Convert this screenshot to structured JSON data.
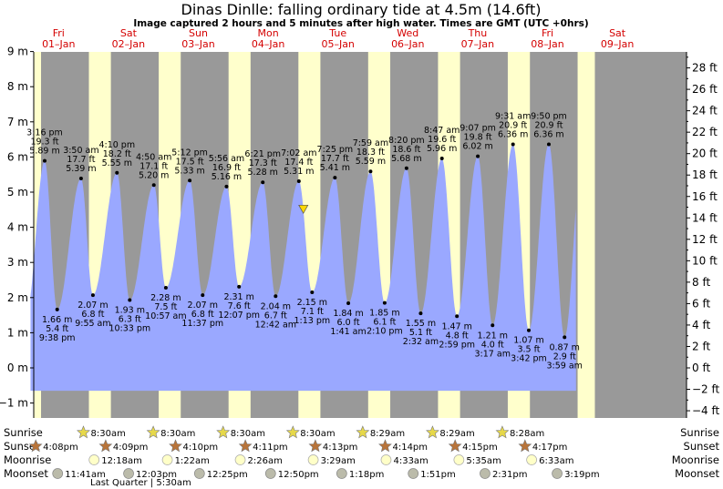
{
  "title": "Dinas Dinlle: falling  ordinary tide at 4.5m (14.6ft)",
  "subtitle": "Image captured 2 hours and 5 minutes after high water. Times are GMT (UTC +0hrs)",
  "colors": {
    "day": "#ffffcc",
    "night": "#999999",
    "water": "#9aa8ff",
    "daylabel": "#d40000",
    "sunrise_star": "#e6d84a",
    "sunset_star": "#b8743a",
    "moonrise": "#ffffc8",
    "moonset": "#bbbbaa",
    "marker": "#ffd800"
  },
  "days": [
    {
      "dow": "Fri",
      "date": "01–Jan"
    },
    {
      "dow": "Sat",
      "date": "02–Jan"
    },
    {
      "dow": "Sun",
      "date": "03–Jan"
    },
    {
      "dow": "Mon",
      "date": "04–Jan"
    },
    {
      "dow": "Tue",
      "date": "05–Jan"
    },
    {
      "dow": "Wed",
      "date": "06–Jan"
    },
    {
      "dow": "Thu",
      "date": "07–Jan"
    },
    {
      "dow": "Fri",
      "date": "08–Jan"
    },
    {
      "dow": "Sat",
      "date": "09–Jan"
    }
  ],
  "chart_data": {
    "type": "area",
    "title": "Dinas Dinlle: falling  ordinary tide at 4.5m (14.6ft)",
    "y_left": {
      "unit": "m",
      "range": [
        -1.5,
        9
      ],
      "ticks": [
        "9 m",
        "8 m",
        "7 m",
        "6 m",
        "5 m",
        "4 m",
        "3 m",
        "2 m",
        "1 m",
        "0 m",
        "−1 m"
      ]
    },
    "y_right": {
      "unit": "ft",
      "range": [
        -4.9,
        29.5
      ],
      "ticks": [
        "28 ft",
        "26 ft",
        "24 ft",
        "22 ft",
        "20 ft",
        "18 ft",
        "16 ft",
        "14 ft",
        "12 ft",
        "10 ft",
        "8 ft",
        "6 ft",
        "4 ft",
        "2 ft",
        "0 ft",
        "−2 ft",
        "−4 ft"
      ]
    },
    "x_range_days": [
      0,
      8
    ],
    "current": {
      "height_m": 4.5,
      "height_ft": 14.6,
      "state": "falling"
    },
    "high_tides": [
      {
        "t": 0.222,
        "m": 5.89,
        "time": "3:16 pm",
        "ft": "19.3 ft",
        "mtxt": "5.89 m"
      },
      {
        "t": 0.743,
        "m": 5.39,
        "time": "3:50 am",
        "ft": "17.7 ft",
        "mtxt": "5.39 m"
      },
      {
        "t": 1.257,
        "m": 5.55,
        "time": "4:10 pm",
        "ft": "18.2 ft",
        "mtxt": "5.55 m"
      },
      {
        "t": 1.785,
        "m": 5.2,
        "time": "4:50 am",
        "ft": "17.1 ft",
        "mtxt": "5.20 m"
      },
      {
        "t": 2.299,
        "m": 5.33,
        "time": "5:12 pm",
        "ft": "17.5 ft",
        "mtxt": "5.33 m"
      },
      {
        "t": 2.826,
        "m": 5.16,
        "time": "5:56 am",
        "ft": "16.9 ft",
        "mtxt": "5.16 m"
      },
      {
        "t": 3.345,
        "m": 5.28,
        "time": "6:21 pm",
        "ft": "17.3 ft",
        "mtxt": "5.28 m"
      },
      {
        "t": 3.862,
        "m": 5.31,
        "time": "7:02 am",
        "ft": "17.4 ft",
        "mtxt": "5.31 m"
      },
      {
        "t": 4.378,
        "m": 5.41,
        "time": "7:25 pm",
        "ft": "17.7 ft",
        "mtxt": "5.41 m"
      },
      {
        "t": 4.888,
        "m": 5.59,
        "time": "7:59 am",
        "ft": "18.3 ft",
        "mtxt": "5.59 m"
      },
      {
        "t": 5.403,
        "m": 5.68,
        "time": "8:20 pm",
        "ft": "18.6 ft",
        "mtxt": "5.68 m"
      },
      {
        "t": 5.91,
        "m": 5.96,
        "time": "8:47 am",
        "ft": "19.6 ft",
        "mtxt": "5.96 m"
      },
      {
        "t": 6.424,
        "m": 6.02,
        "time": "9:07 pm",
        "ft": "19.8 ft",
        "mtxt": "6.02 m"
      },
      {
        "t": 6.928,
        "m": 6.36,
        "time": "9:31 am",
        "ft": "20.9 ft",
        "mtxt": "6.36 m"
      },
      {
        "t": 7.441,
        "m": 6.36,
        "time": "9:50 pm",
        "ft": "20.9 ft",
        "mtxt": "6.36 m"
      }
    ],
    "low_tides": [
      {
        "t": 0.401,
        "m": 1.66,
        "time": "9:38 pm",
        "ft": "5.4 ft",
        "mtxt": "1.66 m"
      },
      {
        "t": 0.913,
        "m": 2.07,
        "time": "9:55 am",
        "ft": "6.8 ft",
        "mtxt": "2.07 m"
      },
      {
        "t": 1.44,
        "m": 1.93,
        "time": "10:33 pm",
        "ft": "6.3 ft",
        "mtxt": "1.93 m"
      },
      {
        "t": 1.957,
        "m": 2.28,
        "time": "10:57 am",
        "ft": "7.5 ft",
        "mtxt": "2.28 m"
      },
      {
        "t": 2.484,
        "m": 2.07,
        "time": "11:37 pm",
        "ft": "6.8 ft",
        "mtxt": "2.07 m"
      },
      {
        "t": 3.005,
        "m": 2.31,
        "time": "12:07 pm",
        "ft": "7.6 ft",
        "mtxt": "2.31 m"
      },
      {
        "t": 3.529,
        "m": 2.04,
        "time": "12:42 am",
        "ft": "6.7 ft",
        "mtxt": "2.04 m"
      },
      {
        "t": 4.051,
        "m": 2.15,
        "time": "1:13 pm",
        "ft": "7.1 ft",
        "mtxt": "2.15 m"
      },
      {
        "t": 4.57,
        "m": 1.84,
        "time": "1:41 am",
        "ft": "6.0 ft",
        "mtxt": "1.84 m"
      },
      {
        "t": 5.09,
        "m": 1.85,
        "time": "2:10 pm",
        "ft": "6.1 ft",
        "mtxt": "1.85 m"
      },
      {
        "t": 5.606,
        "m": 1.55,
        "time": "2:32 am",
        "ft": "5.1 ft",
        "mtxt": "1.55 m"
      },
      {
        "t": 6.125,
        "m": 1.47,
        "time": "2:59 pm",
        "ft": "4.8 ft",
        "mtxt": "1.47 m"
      },
      {
        "t": 6.635,
        "m": 1.21,
        "time": "3:17 am",
        "ft": "4.0 ft",
        "mtxt": "1.21 m"
      },
      {
        "t": 7.154,
        "m": 1.07,
        "time": "3:42 pm",
        "ft": "3.5 ft",
        "mtxt": "1.07 m"
      },
      {
        "t": 7.666,
        "m": 0.87,
        "time": "3:59 am",
        "ft": "2.9 ft",
        "mtxt": "0.87 m"
      }
    ]
  },
  "daylight": [
    {
      "start": -0.1,
      "end": 0.17
    },
    {
      "start": 0.855,
      "end": 1.17
    },
    {
      "start": 1.855,
      "end": 2.17
    },
    {
      "start": 2.855,
      "end": 3.17
    },
    {
      "start": 3.855,
      "end": 4.17
    },
    {
      "start": 4.854,
      "end": 5.17
    },
    {
      "start": 5.854,
      "end": 6.17
    },
    {
      "start": 6.853,
      "end": 7.17
    },
    {
      "start": 7.853,
      "end": 8.1
    }
  ],
  "rows": {
    "labels": {
      "sunrise": "Sunrise",
      "sunset": "Sunset",
      "moonrise": "Moonrise",
      "moonset": "Moonset"
    },
    "sunrise": [
      {
        "t": 0.855,
        "time": "8:30am"
      },
      {
        "t": 1.855,
        "time": "8:30am"
      },
      {
        "t": 2.855,
        "time": "8:30am"
      },
      {
        "t": 3.855,
        "time": "8:30am"
      },
      {
        "t": 4.854,
        "time": "8:29am"
      },
      {
        "t": 5.854,
        "time": "8:29am"
      },
      {
        "t": 6.853,
        "time": "8:28am"
      }
    ],
    "sunset": [
      {
        "t": 0.172,
        "time": "4:08pm"
      },
      {
        "t": 1.173,
        "time": "4:09pm"
      },
      {
        "t": 2.174,
        "time": "4:10pm"
      },
      {
        "t": 3.174,
        "time": "4:11pm"
      },
      {
        "t": 4.176,
        "time": "4:13pm"
      },
      {
        "t": 5.176,
        "time": "4:14pm"
      },
      {
        "t": 6.177,
        "time": "4:15pm"
      },
      {
        "t": 7.178,
        "time": "4:17pm"
      }
    ],
    "moonrise": [
      {
        "t": 1.008,
        "time": "12:18am"
      },
      {
        "t": 2.057,
        "time": "1:22am"
      },
      {
        "t": 3.101,
        "time": "2:26am"
      },
      {
        "t": 4.146,
        "time": "3:29am"
      },
      {
        "t": 5.189,
        "time": "4:33am"
      },
      {
        "t": 6.232,
        "time": "5:35am"
      },
      {
        "t": 7.273,
        "time": "6:33am"
      }
    ],
    "moonset": [
      {
        "t": 0.486,
        "time": "11:41am"
      },
      {
        "t": 1.502,
        "time": "12:03pm"
      },
      {
        "t": 2.517,
        "time": "12:25pm"
      },
      {
        "t": 3.535,
        "time": "12:50pm"
      },
      {
        "t": 4.554,
        "time": "1:18pm"
      },
      {
        "t": 5.577,
        "time": "1:51pm"
      },
      {
        "t": 6.605,
        "time": "2:31pm"
      },
      {
        "t": 7.638,
        "time": "3:19pm"
      }
    ],
    "moon_phase": "Last Quarter | 5:30am"
  }
}
